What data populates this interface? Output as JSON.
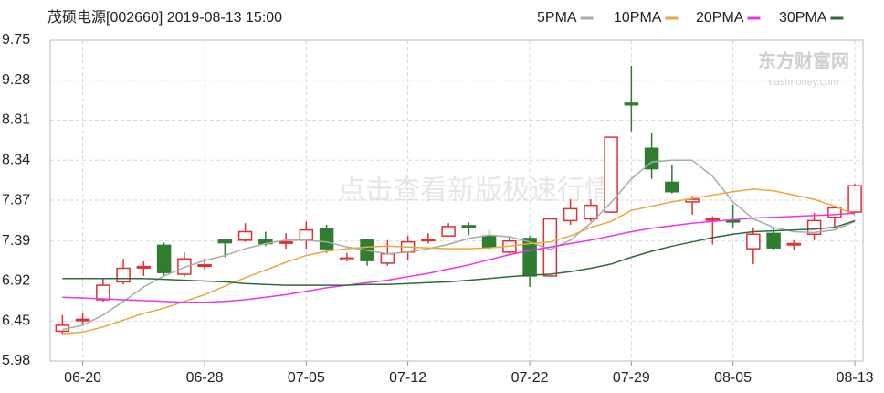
{
  "chart_data": {
    "type": "candlestick",
    "title": "茂硕电源[002660] 2019-08-13 15:00",
    "categories": [
      null,
      "06-20",
      null,
      null,
      null,
      null,
      null,
      "06-28",
      null,
      null,
      null,
      null,
      "07-05",
      null,
      null,
      null,
      null,
      "07-12",
      null,
      null,
      null,
      null,
      null,
      "07-22",
      null,
      null,
      null,
      null,
      "07-29",
      null,
      null,
      null,
      null,
      "08-05",
      null,
      null,
      null,
      null,
      null,
      "08-13"
    ],
    "open": [
      6.33,
      6.46,
      6.7,
      6.91,
      7.08,
      7.34,
      7.0,
      7.11,
      7.4,
      7.4,
      7.41,
      7.38,
      7.4,
      7.54,
      7.17,
      7.4,
      7.13,
      7.26,
      7.41,
      7.45,
      7.57,
      7.45,
      7.26,
      7.42,
      6.98,
      7.63,
      7.65,
      7.73,
      9.01,
      8.48,
      8.08,
      7.85,
      7.65,
      7.63,
      7.3,
      7.48,
      7.36,
      7.47,
      7.67,
      7.73
    ],
    "high": [
      6.52,
      6.55,
      6.95,
      7.18,
      7.15,
      7.37,
      7.26,
      7.19,
      7.42,
      7.6,
      7.5,
      7.48,
      7.62,
      7.58,
      7.25,
      7.42,
      7.4,
      7.45,
      7.48,
      7.6,
      7.61,
      7.52,
      7.43,
      7.45,
      7.66,
      7.88,
      7.88,
      8.61,
      9.45,
      8.66,
      8.28,
      7.92,
      7.68,
      7.82,
      7.55,
      7.55,
      7.4,
      7.72,
      7.8,
      8.06
    ],
    "low": [
      6.3,
      6.4,
      6.68,
      6.88,
      6.98,
      6.98,
      6.97,
      7.05,
      7.2,
      7.38,
      7.33,
      7.3,
      7.3,
      7.25,
      7.15,
      7.1,
      7.1,
      7.17,
      7.36,
      7.44,
      7.46,
      7.28,
      7.24,
      6.85,
      6.98,
      7.58,
      7.62,
      7.72,
      8.68,
      8.12,
      7.95,
      7.7,
      7.35,
      7.55,
      7.12,
      7.29,
      7.28,
      7.4,
      7.55,
      7.72
    ],
    "close": [
      6.4,
      6.47,
      6.87,
      7.07,
      7.09,
      7.02,
      7.18,
      7.11,
      7.37,
      7.5,
      7.36,
      7.38,
      7.52,
      7.3,
      7.19,
      7.16,
      7.24,
      7.38,
      7.41,
      7.56,
      7.56,
      7.32,
      7.39,
      6.98,
      7.65,
      7.77,
      7.81,
      8.61,
      8.99,
      8.24,
      7.97,
      7.88,
      7.65,
      7.62,
      7.47,
      7.31,
      7.36,
      7.63,
      7.78,
      8.04
    ],
    "up_color": "#e03030",
    "down_color": "#2f7d2f",
    "series": [
      {
        "name": "5PMA",
        "color": "#aaaaaa",
        "values": [
          6.35,
          6.4,
          6.52,
          6.68,
          6.85,
          6.98,
          7.08,
          7.16,
          7.22,
          7.3,
          7.36,
          7.4,
          7.4,
          7.38,
          7.32,
          7.28,
          7.24,
          7.26,
          7.3,
          7.35,
          7.42,
          7.46,
          7.44,
          7.38,
          7.29,
          7.4,
          7.6,
          7.84,
          8.12,
          8.32,
          8.34,
          8.34,
          8.15,
          7.85,
          7.65,
          7.55,
          7.5,
          7.49,
          7.52,
          7.62
        ]
      },
      {
        "name": "10PMA",
        "color": "#e8a83a",
        "values": [
          6.3,
          6.32,
          6.38,
          6.46,
          6.54,
          6.6,
          6.68,
          6.76,
          6.86,
          6.96,
          7.05,
          7.14,
          7.22,
          7.27,
          7.3,
          7.32,
          7.33,
          7.32,
          7.31,
          7.3,
          7.3,
          7.31,
          7.33,
          7.36,
          7.38,
          7.45,
          7.55,
          7.62,
          7.75,
          7.8,
          7.85,
          7.89,
          7.93,
          7.97,
          8.0,
          7.98,
          7.93,
          7.88,
          7.8,
          7.7
        ]
      },
      {
        "name": "20PMA",
        "color": "#ee33ee",
        "values": [
          6.73,
          6.72,
          6.71,
          6.7,
          6.69,
          6.68,
          6.67,
          6.67,
          6.68,
          6.7,
          6.73,
          6.76,
          6.8,
          6.84,
          6.87,
          6.9,
          6.93,
          6.97,
          7.01,
          7.06,
          7.11,
          7.17,
          7.23,
          7.28,
          7.32,
          7.36,
          7.4,
          7.45,
          7.5,
          7.54,
          7.57,
          7.6,
          7.62,
          7.64,
          7.66,
          7.67,
          7.68,
          7.69,
          7.7,
          7.72
        ]
      },
      {
        "name": "30PMA",
        "color": "#2e6b3a",
        "values": [
          6.95,
          6.95,
          6.95,
          6.95,
          6.95,
          6.94,
          6.93,
          6.92,
          6.91,
          6.89,
          6.88,
          6.87,
          6.87,
          6.87,
          6.87,
          6.88,
          6.88,
          6.89,
          6.9,
          6.91,
          6.93,
          6.95,
          6.97,
          6.99,
          7.0,
          7.03,
          7.07,
          7.12,
          7.2,
          7.27,
          7.33,
          7.38,
          7.43,
          7.47,
          7.5,
          7.51,
          7.52,
          7.53,
          7.55,
          7.63
        ]
      }
    ],
    "ylim": [
      5.98,
      9.75
    ],
    "yticks": [
      5.98,
      6.45,
      6.92,
      7.39,
      7.87,
      8.34,
      8.81,
      9.28,
      9.75
    ],
    "grid": true,
    "annotations": [
      "点击查看新版极速行情",
      "东方财富网",
      "eastmoney.com"
    ]
  }
}
